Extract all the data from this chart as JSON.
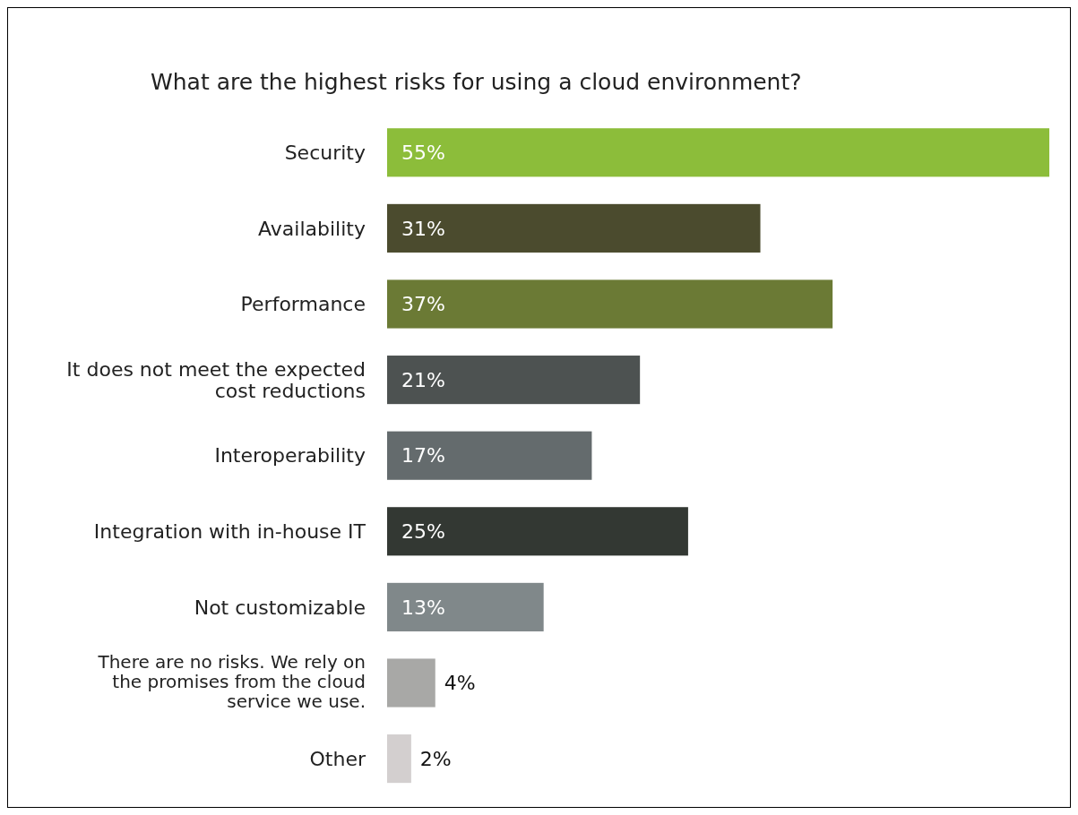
{
  "chart_data": {
    "type": "bar",
    "orientation": "horizontal",
    "title": "What are the highest risks for using a cloud environment?",
    "categories": [
      "Security",
      "Availability",
      "Performance",
      "It does not meet the expected cost reductions",
      "Interoperability",
      "Integration with in-house IT",
      "Not customizable",
      "There are no risks. We rely on the promises from the cloud service we use.",
      "Other"
    ],
    "values": [
      55,
      31,
      37,
      21,
      17,
      25,
      13,
      4,
      2
    ],
    "colors": [
      "#8cbd3a",
      "#4b4b2e",
      "#6b7a35",
      "#4d5251",
      "#646b6d",
      "#333833",
      "#80888a",
      "#a8a8a6",
      "#d3cfcf"
    ],
    "value_labels": [
      "55%",
      "31%",
      "37%",
      "21%",
      "17%",
      "25%",
      "13%",
      "4%",
      "2%"
    ]
  }
}
